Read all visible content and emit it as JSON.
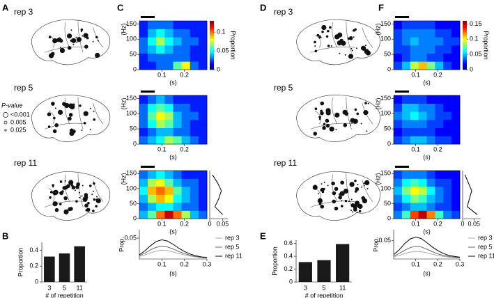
{
  "panel_letters": [
    "A",
    "B",
    "C",
    "D",
    "E",
    "F"
  ],
  "brain_labels": {
    "left": [
      "rep 3",
      "rep 5",
      "rep 11"
    ],
    "right": [
      "rep 3",
      "rep 5",
      "rep 11"
    ]
  },
  "pvalue_legend": {
    "title": "P-value",
    "items": [
      "<0.001",
      "0.005",
      "0.025"
    ]
  },
  "chart_data": [
    {
      "type": "heatmap",
      "xlabel": "(s)",
      "ylabel": "(Hz)",
      "xlim": [
        0,
        0.3
      ],
      "ylim": [
        0,
        160
      ],
      "xticks": [
        0.1,
        0.2
      ],
      "yticks": [
        0,
        50,
        100,
        150
      ],
      "clim": [
        0,
        0.13
      ],
      "colorbar": {
        "label": "Proportion",
        "ticks": [
          0,
          0.05,
          0.1
        ]
      },
      "z": [
        [
          0.02,
          0.02,
          0.03,
          0.03,
          0.06,
          0.08,
          0.03,
          0.02
        ],
        [
          0.02,
          0.03,
          0.03,
          0.03,
          0.03,
          0.03,
          0.02,
          0.02
        ],
        [
          0.03,
          0.04,
          0.05,
          0.04,
          0.03,
          0.03,
          0.02,
          0.02
        ],
        [
          0.03,
          0.05,
          0.07,
          0.05,
          0.04,
          0.03,
          0.03,
          0.02
        ],
        [
          0.02,
          0.04,
          0.05,
          0.04,
          0.03,
          0.03,
          0.02,
          0.02
        ],
        [
          0.02,
          0.03,
          0.03,
          0.03,
          0.02,
          0.02,
          0.02,
          0.02
        ]
      ]
    },
    {
      "type": "heatmap",
      "xlabel": "(s)",
      "ylabel": "(Hz)",
      "xlim": [
        0,
        0.3
      ],
      "ylim": [
        0,
        160
      ],
      "xticks": [
        0.1,
        0.2
      ],
      "yticks": [
        0,
        50,
        100,
        150
      ],
      "clim": [
        0,
        0.13
      ],
      "z": [
        [
          0.03,
          0.04,
          0.05,
          0.07,
          0.06,
          0.04,
          0.03,
          0.02
        ],
        [
          0.02,
          0.03,
          0.04,
          0.04,
          0.03,
          0.03,
          0.02,
          0.02
        ],
        [
          0.03,
          0.05,
          0.07,
          0.06,
          0.04,
          0.03,
          0.02,
          0.02
        ],
        [
          0.03,
          0.06,
          0.08,
          0.07,
          0.04,
          0.03,
          0.03,
          0.02
        ],
        [
          0.03,
          0.05,
          0.06,
          0.05,
          0.03,
          0.03,
          0.02,
          0.02
        ],
        [
          0.02,
          0.03,
          0.04,
          0.03,
          0.02,
          0.02,
          0.02,
          0.02
        ]
      ]
    },
    {
      "type": "heatmap",
      "xlabel": "(s)",
      "ylabel": "(Hz)",
      "xlim": [
        0,
        0.3
      ],
      "ylim": [
        0,
        160
      ],
      "xticks": [
        0.1,
        0.2
      ],
      "yticks": [
        0,
        50,
        100,
        150
      ],
      "clim": [
        0,
        0.13
      ],
      "profile": {
        "values": [
          0.05,
          0.02,
          0.035,
          0.045,
          0.03,
          0.01
        ],
        "xlim": [
          0,
          0.07
        ],
        "xticks": [
          0,
          0.05
        ]
      },
      "z": [
        [
          0.04,
          0.06,
          0.1,
          0.12,
          0.1,
          0.07,
          0.04,
          0.03
        ],
        [
          0.03,
          0.04,
          0.05,
          0.05,
          0.04,
          0.03,
          0.03,
          0.02
        ],
        [
          0.04,
          0.07,
          0.09,
          0.08,
          0.05,
          0.04,
          0.03,
          0.02
        ],
        [
          0.05,
          0.09,
          0.1,
          0.09,
          0.06,
          0.04,
          0.03,
          0.02
        ],
        [
          0.04,
          0.07,
          0.08,
          0.06,
          0.04,
          0.03,
          0.03,
          0.02
        ],
        [
          0.03,
          0.04,
          0.05,
          0.04,
          0.03,
          0.02,
          0.02,
          0.02
        ]
      ]
    },
    {
      "type": "line",
      "xlabel": "(s)",
      "ylabel": "Prop.",
      "xlim": [
        0,
        0.3
      ],
      "ylim": [
        0,
        0.07
      ],
      "xticks": [
        0.1,
        0.2,
        0.3
      ],
      "yticks": [
        0.05
      ],
      "x": [
        0,
        0.025,
        0.05,
        0.075,
        0.1,
        0.125,
        0.15,
        0.175,
        0.2,
        0.225,
        0.25,
        0.275,
        0.3
      ],
      "series": [
        {
          "name": "rep 3",
          "color": "#aaaaaa",
          "values": [
            0.006,
            0.01,
            0.015,
            0.019,
            0.021,
            0.02,
            0.017,
            0.013,
            0.01,
            0.007,
            0.005,
            0.004,
            0.003
          ]
        },
        {
          "name": "rep 5",
          "color": "#666666",
          "values": [
            0.008,
            0.014,
            0.022,
            0.028,
            0.031,
            0.029,
            0.024,
            0.018,
            0.013,
            0.009,
            0.006,
            0.004,
            0.003
          ]
        },
        {
          "name": "rep 11",
          "color": "#000000",
          "values": [
            0.01,
            0.02,
            0.032,
            0.042,
            0.046,
            0.043,
            0.035,
            0.026,
            0.018,
            0.012,
            0.008,
            0.005,
            0.004
          ]
        }
      ]
    },
    {
      "type": "bar",
      "xlabel": "# of repetition",
      "ylabel": "Proportion",
      "ylim": [
        0,
        0.5
      ],
      "yticks": [
        0,
        0.2,
        0.4
      ],
      "color": "#1a1a1a",
      "categories": [
        "3",
        "5",
        "11"
      ],
      "values": [
        0.32,
        0.36,
        0.45
      ]
    },
    {
      "type": "heatmap",
      "xlabel": "(s)",
      "ylabel": "(Hz)",
      "xlim": [
        0,
        0.3
      ],
      "ylim": [
        0,
        160
      ],
      "xticks": [
        0.1,
        0.2
      ],
      "yticks": [
        0,
        50,
        100,
        150
      ],
      "clim": [
        0,
        0.16
      ],
      "colorbar": {
        "label": "Proportion",
        "ticks": [
          0,
          0.05,
          0.1,
          0.15
        ]
      },
      "z": [
        [
          0.03,
          0.05,
          0.09,
          0.11,
          0.08,
          0.05,
          0.03,
          0.02
        ],
        [
          0.02,
          0.03,
          0.04,
          0.04,
          0.03,
          0.03,
          0.02,
          0.02
        ],
        [
          0.03,
          0.03,
          0.04,
          0.04,
          0.04,
          0.03,
          0.03,
          0.02
        ],
        [
          0.03,
          0.04,
          0.05,
          0.04,
          0.04,
          0.04,
          0.03,
          0.03
        ],
        [
          0.03,
          0.04,
          0.04,
          0.04,
          0.04,
          0.03,
          0.03,
          0.02
        ],
        [
          0.02,
          0.03,
          0.03,
          0.03,
          0.03,
          0.02,
          0.02,
          0.02
        ]
      ]
    },
    {
      "type": "heatmap",
      "xlabel": "(s)",
      "ylabel": "(Hz)",
      "xlim": [
        0,
        0.3
      ],
      "ylim": [
        0,
        160
      ],
      "xticks": [
        0.1,
        0.2
      ],
      "yticks": [
        0,
        50,
        100,
        150
      ],
      "clim": [
        0,
        0.16
      ],
      "z": [
        [
          0.03,
          0.04,
          0.05,
          0.05,
          0.04,
          0.03,
          0.03,
          0.02
        ],
        [
          0.02,
          0.03,
          0.03,
          0.03,
          0.03,
          0.02,
          0.02,
          0.02
        ],
        [
          0.03,
          0.04,
          0.04,
          0.04,
          0.03,
          0.03,
          0.02,
          0.02
        ],
        [
          0.04,
          0.05,
          0.06,
          0.05,
          0.04,
          0.03,
          0.03,
          0.02
        ],
        [
          0.03,
          0.05,
          0.05,
          0.04,
          0.04,
          0.03,
          0.02,
          0.02
        ],
        [
          0.02,
          0.03,
          0.03,
          0.03,
          0.02,
          0.02,
          0.02,
          0.02
        ]
      ]
    },
    {
      "type": "heatmap",
      "xlabel": "(s)",
      "ylabel": "(Hz)",
      "xlim": [
        0,
        0.3
      ],
      "ylim": [
        0,
        160
      ],
      "xticks": [
        0.1,
        0.2
      ],
      "yticks": [
        0,
        50,
        100,
        150
      ],
      "clim": [
        0,
        0.16
      ],
      "profile": {
        "values": [
          0.065,
          0.02,
          0.03,
          0.04,
          0.025,
          0.01
        ],
        "xlim": [
          0,
          0.08
        ],
        "xticks": [
          0,
          0.05
        ]
      },
      "z": [
        [
          0.04,
          0.07,
          0.13,
          0.15,
          0.12,
          0.07,
          0.04,
          0.03
        ],
        [
          0.03,
          0.04,
          0.05,
          0.05,
          0.04,
          0.03,
          0.03,
          0.02
        ],
        [
          0.04,
          0.06,
          0.08,
          0.07,
          0.05,
          0.04,
          0.03,
          0.02
        ],
        [
          0.05,
          0.08,
          0.1,
          0.09,
          0.06,
          0.04,
          0.03,
          0.02
        ],
        [
          0.04,
          0.06,
          0.07,
          0.06,
          0.04,
          0.03,
          0.03,
          0.02
        ],
        [
          0.03,
          0.04,
          0.04,
          0.04,
          0.03,
          0.02,
          0.02,
          0.02
        ]
      ]
    },
    {
      "type": "line",
      "xlabel": "(s)",
      "ylabel": "Prop.",
      "xlim": [
        0,
        0.3
      ],
      "ylim": [
        0,
        0.08
      ],
      "xticks": [
        0.1,
        0.2,
        0.3
      ],
      "yticks": [
        0.05
      ],
      "x": [
        0,
        0.025,
        0.05,
        0.075,
        0.1,
        0.125,
        0.15,
        0.175,
        0.2,
        0.225,
        0.25,
        0.275,
        0.3
      ],
      "series": [
        {
          "name": "rep 3",
          "color": "#aaaaaa",
          "values": [
            0.006,
            0.01,
            0.015,
            0.019,
            0.021,
            0.02,
            0.017,
            0.013,
            0.01,
            0.007,
            0.005,
            0.004,
            0.003
          ]
        },
        {
          "name": "rep 5",
          "color": "#666666",
          "values": [
            0.008,
            0.015,
            0.024,
            0.031,
            0.035,
            0.033,
            0.027,
            0.02,
            0.014,
            0.01,
            0.007,
            0.005,
            0.004
          ]
        },
        {
          "name": "rep 11",
          "color": "#000000",
          "values": [
            0.012,
            0.025,
            0.042,
            0.055,
            0.06,
            0.056,
            0.045,
            0.033,
            0.023,
            0.015,
            0.01,
            0.007,
            0.005
          ]
        }
      ]
    },
    {
      "type": "bar",
      "xlabel": "# of repetition",
      "ylabel": "Proportion",
      "ylim": [
        0,
        0.65
      ],
      "yticks": [
        0,
        0.2,
        0.4,
        0.6
      ],
      "color": "#1a1a1a",
      "categories": [
        "3",
        "5",
        "11"
      ],
      "values": [
        0.31,
        0.34,
        0.59
      ]
    }
  ]
}
